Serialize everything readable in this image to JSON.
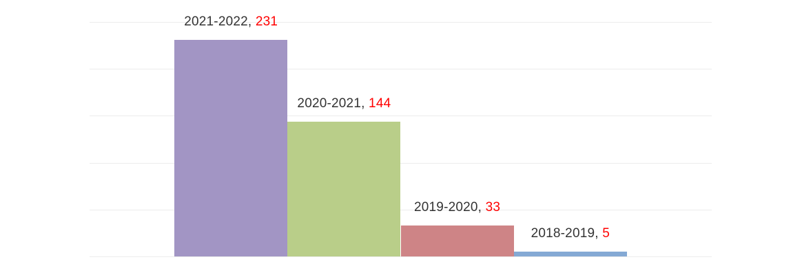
{
  "chart_data": {
    "type": "bar",
    "title": "",
    "categories": [
      "2021-2022",
      "2020-2021",
      "2019-2020",
      "2018-2019"
    ],
    "values": [
      231,
      144,
      33,
      5
    ],
    "series": [
      {
        "name": "2021-2022",
        "value": 231,
        "color": "#A295C4"
      },
      {
        "name": "2020-2021",
        "value": 144,
        "color": "#B9CE89"
      },
      {
        "name": "2019-2020",
        "value": 33,
        "color": "#CE8486"
      },
      {
        "name": "2018-2019",
        "value": 5,
        "color": "#84A9D4"
      }
    ],
    "data_labels": [
      "2021-2022, 231",
      "2020-2021, 144",
      "2019-2020, 33",
      "2018-2019, 5"
    ],
    "label_separator": ", ",
    "xlabel": "",
    "ylabel": "",
    "ylim": [
      0,
      250
    ],
    "gridline_step": 50,
    "grid": true,
    "legend": "none",
    "axis_tick_labels_visible": false,
    "colors": {
      "gridline": "#ECECEC",
      "label_text": "#333333",
      "label_value": "#FF0000",
      "background": "#FFFFFF"
    }
  }
}
